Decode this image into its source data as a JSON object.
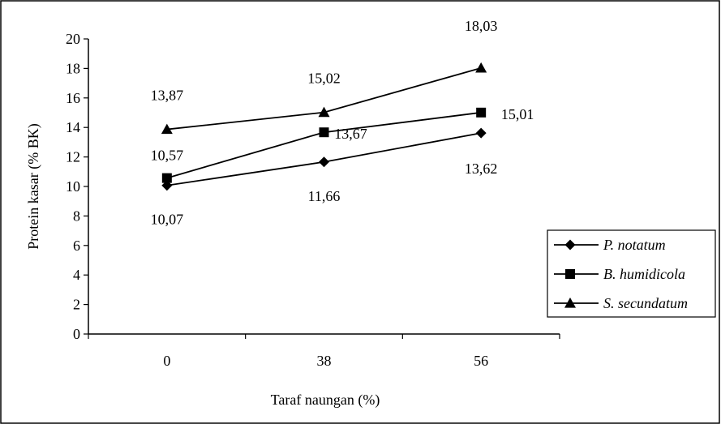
{
  "chart_data": {
    "type": "line",
    "title": "",
    "xlabel": "Taraf naungan (%)",
    "ylabel": "Protein kasar (% BK)",
    "categories": [
      "0",
      "38",
      "56"
    ],
    "ylim": [
      0,
      20
    ],
    "yticks": [
      0,
      2,
      4,
      6,
      8,
      10,
      12,
      14,
      16,
      18,
      20
    ],
    "grid": false,
    "legend_position": "right",
    "series": [
      {
        "name": "P. notatum",
        "marker": "diamond",
        "values": [
          10.07,
          11.66,
          13.62
        ],
        "labels": [
          "10,07",
          "11,66",
          "13,62"
        ]
      },
      {
        "name": "B. humidicola",
        "marker": "square",
        "values": [
          10.57,
          13.67,
          15.01
        ],
        "labels": [
          "10,57",
          "13,67",
          "15,01"
        ]
      },
      {
        "name": "S. secundatum",
        "marker": "triangle",
        "values": [
          13.87,
          15.02,
          18.03
        ],
        "labels": [
          "13,87",
          "15,02",
          "18,03"
        ]
      }
    ]
  }
}
